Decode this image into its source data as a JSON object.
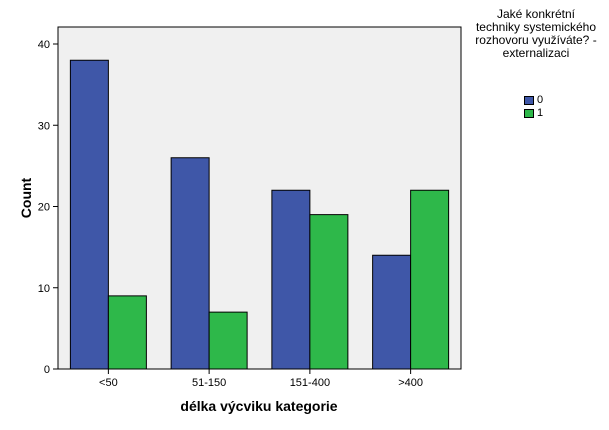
{
  "chart_data": {
    "type": "bar",
    "categories": [
      "<50",
      "51-150",
      "151-400",
      ">400"
    ],
    "series": [
      {
        "name": "0",
        "values": [
          38,
          26,
          22,
          14
        ],
        "color": "#3f57a8"
      },
      {
        "name": "1",
        "values": [
          9,
          7,
          19,
          22
        ],
        "color": "#2eb84a"
      }
    ],
    "xlabel": "délka výcviku kategorie",
    "ylabel": "Count",
    "ylim": [
      0,
      40
    ],
    "yticks": [
      0,
      10,
      20,
      30,
      40
    ],
    "legend": {
      "title_lines": [
        "Jaké konkrétní",
        "techniky systemického",
        "rozhovoru využíváte? -",
        "externalizaci"
      ],
      "placement": "right"
    },
    "plot_background": "#f0f0f0",
    "grid": false
  }
}
